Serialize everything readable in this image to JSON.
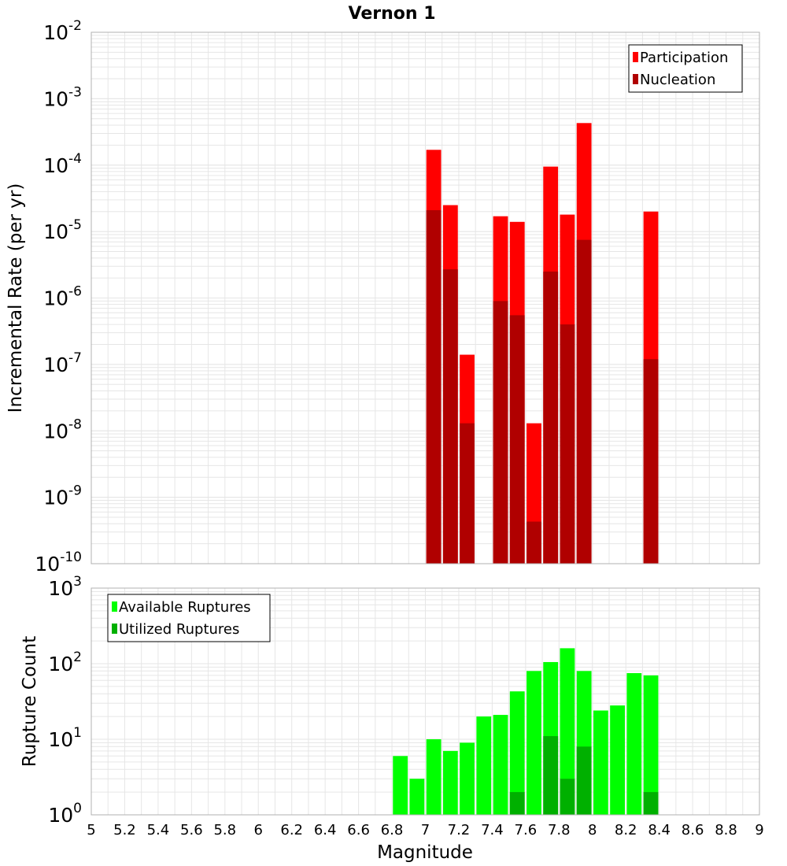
{
  "title": "Vernon 1",
  "xlabel": "Magnitude",
  "x_ticks": [
    "5",
    "5.2",
    "5.4",
    "5.6",
    "5.8",
    "6",
    "6.2",
    "6.4",
    "6.6",
    "6.8",
    "7",
    "7.2",
    "7.4",
    "7.6",
    "7.8",
    "8",
    "8.2",
    "8.4",
    "8.6",
    "8.8",
    "9"
  ],
  "colors": {
    "participation": "#ff0000",
    "nucleation": "#b00000",
    "available": "#00ff00",
    "utilized": "#00b000",
    "grid": "#e6e6e6",
    "axis": "#b0b0b0"
  },
  "chart_data": [
    {
      "type": "bar",
      "subplot": "top",
      "title": "Vernon 1",
      "ylabel": "Incremental Rate (per yr)",
      "yscale": "log",
      "ylim_exp": [
        -10,
        -2
      ],
      "xlim": [
        5,
        9
      ],
      "bin_width": 0.1,
      "legend": [
        "Participation",
        "Nucleation"
      ],
      "legend_position": "top-right",
      "y_tick_exponents": [
        "-10",
        "-9",
        "-8",
        "-7",
        "-6",
        "-5",
        "-4",
        "-3",
        "-2"
      ],
      "series": [
        {
          "name": "Participation",
          "x": [
            7.05,
            7.15,
            7.25,
            7.45,
            7.55,
            7.65,
            7.75,
            7.85,
            7.95,
            8.35
          ],
          "values": [
            0.00017,
            2.5e-05,
            1.4e-07,
            1.7e-05,
            1.4e-05,
            1.3e-08,
            9.5e-05,
            1.8e-05,
            0.00043,
            2e-05
          ]
        },
        {
          "name": "Nucleation",
          "x": [
            7.05,
            7.15,
            7.25,
            7.45,
            7.55,
            7.65,
            7.75,
            7.85,
            7.95,
            8.35
          ],
          "values": [
            2.1e-05,
            2.7e-06,
            1.3e-08,
            9e-07,
            5.5e-07,
            4.3e-10,
            2.5e-06,
            4e-07,
            7.5e-06,
            1.2e-07
          ]
        }
      ]
    },
    {
      "type": "bar",
      "subplot": "bottom",
      "ylabel": "Rupture Count",
      "yscale": "log",
      "ylim_exp": [
        0,
        3
      ],
      "xlim": [
        5,
        9
      ],
      "bin_width": 0.1,
      "legend": [
        "Available Ruptures",
        "Utilized Ruptures"
      ],
      "legend_position": "top-left",
      "y_tick_exponents": [
        "0",
        "1",
        "2",
        "3"
      ],
      "series": [
        {
          "name": "Available Ruptures",
          "x": [
            6.15,
            6.65,
            6.85,
            6.95,
            7.05,
            7.15,
            7.25,
            7.35,
            7.45,
            7.55,
            7.65,
            7.75,
            7.85,
            7.95,
            8.05,
            8.15,
            8.25,
            8.35
          ],
          "values": [
            1,
            1,
            6,
            3,
            10,
            7,
            9,
            20,
            21,
            43,
            80,
            105,
            160,
            80,
            24,
            28,
            75,
            70
          ]
        },
        {
          "name": "Utilized Ruptures",
          "x": [
            7.05,
            7.15,
            7.25,
            7.45,
            7.55,
            7.65,
            7.75,
            7.85,
            7.95,
            8.35
          ],
          "values": [
            1,
            1,
            1,
            1,
            2,
            1,
            11,
            3,
            8,
            2
          ]
        }
      ]
    }
  ]
}
